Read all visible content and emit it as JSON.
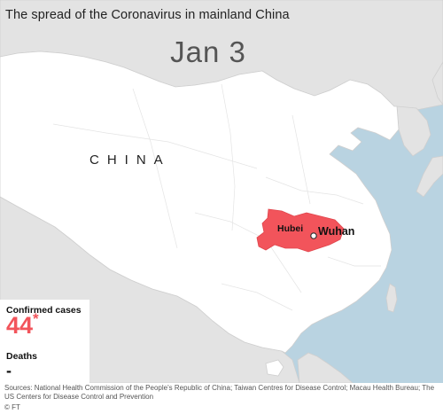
{
  "title": "The spread of the Coronavirus in mainland China",
  "date": "Jan 3",
  "map_labels": {
    "country": "CHINA",
    "province": "Hubei",
    "city": "Wuhan"
  },
  "stats": {
    "confirmed_label": "Confirmed cases",
    "confirmed_value": "44",
    "confirmed_marker": "*",
    "deaths_label": "Deaths",
    "deaths_value": "-"
  },
  "sources": "Sources: National Health Commission of the People's Republic of China; Taiwan Centres for Disease Control; Macau Health Bureau; The US Centers for Disease Control and Prevention",
  "credit": "© FT",
  "colors": {
    "sea": "#b9d3e1",
    "neighbor_land": "#e3e3e3",
    "china_land": "#ffffff",
    "hubei": "#f2545b",
    "cases_accent": "#f2545b"
  }
}
